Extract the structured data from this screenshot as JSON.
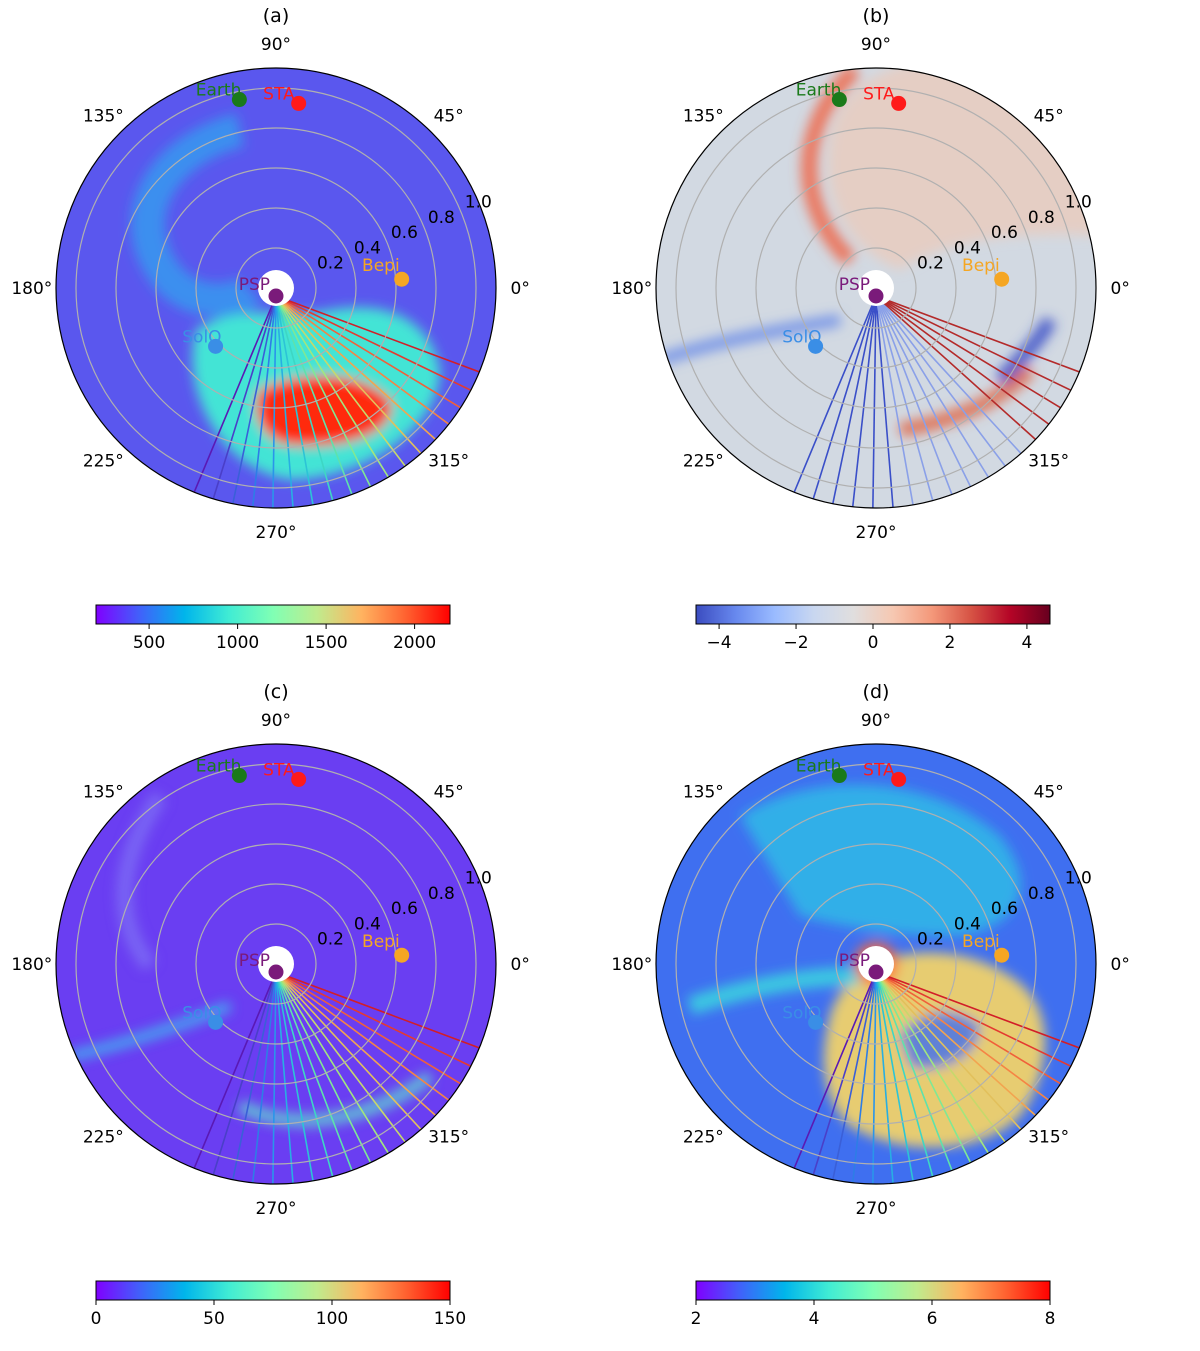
{
  "chart_data": [
    {
      "panel": "(a)",
      "type": "polar-heatmap",
      "title": "(a)",
      "background": "#5a57ee",
      "theta_ticks": [
        "0°",
        "45°",
        "90°",
        "135°",
        "180°",
        "225°",
        "270°",
        "315°"
      ],
      "r_ticks": [
        "0.2",
        "0.4",
        "0.6",
        "0.8",
        "1.0"
      ],
      "r_tick_values": [
        0.2,
        0.4,
        0.6,
        0.8,
        1.0
      ],
      "rmax": 1.1,
      "spacecraft": [
        {
          "name": "Earth",
          "theta": 101,
          "r": 0.96,
          "color": "#1a7a1a"
        },
        {
          "name": "STA",
          "theta": 83,
          "r": 0.93,
          "color": "#ff1a1a"
        },
        {
          "name": "Bepi",
          "theta": 4,
          "r": 0.63,
          "color": "#f5a623"
        },
        {
          "name": "SolO",
          "theta": 224,
          "r": 0.42,
          "color": "#3a8ee6"
        },
        {
          "name": "PSP",
          "theta": 270,
          "r": 0.04,
          "color": "#7a1a7a"
        }
      ],
      "colorbar": {
        "ticks": [
          "500",
          "1000",
          "1500",
          "2000"
        ],
        "tick_values": [
          500,
          1000,
          1500,
          2000
        ],
        "min": 200,
        "max": 2200,
        "cmap": "rainbow"
      }
    },
    {
      "panel": "(b)",
      "type": "polar-heatmap",
      "title": "(b)",
      "background": "#d2d9e2",
      "theta_ticks": [
        "0°",
        "45°",
        "90°",
        "135°",
        "180°",
        "225°",
        "270°",
        "315°"
      ],
      "r_ticks": [
        "0.2",
        "0.4",
        "0.6",
        "0.8",
        "1.0"
      ],
      "r_tick_values": [
        0.2,
        0.4,
        0.6,
        0.8,
        1.0
      ],
      "rmax": 1.1,
      "spacecraft": [
        {
          "name": "Earth",
          "theta": 101,
          "r": 0.96,
          "color": "#1a7a1a"
        },
        {
          "name": "STA",
          "theta": 83,
          "r": 0.93,
          "color": "#ff1a1a"
        },
        {
          "name": "Bepi",
          "theta": 4,
          "r": 0.63,
          "color": "#f5a623"
        },
        {
          "name": "SolO",
          "theta": 224,
          "r": 0.42,
          "color": "#3a8ee6"
        },
        {
          "name": "PSP",
          "theta": 270,
          "r": 0.04,
          "color": "#7a1a7a"
        }
      ],
      "colorbar": {
        "ticks": [
          "−4",
          "−2",
          "0",
          "2",
          "4"
        ],
        "tick_values": [
          -4,
          -2,
          0,
          2,
          4
        ],
        "min": -4.6,
        "max": 4.6,
        "cmap": "coolwarm"
      }
    },
    {
      "panel": "(c)",
      "type": "polar-heatmap",
      "title": "(c)",
      "background": "#6a3ef2",
      "theta_ticks": [
        "0°",
        "45°",
        "90°",
        "135°",
        "180°",
        "225°",
        "270°",
        "315°"
      ],
      "r_ticks": [
        "0.2",
        "0.4",
        "0.6",
        "0.8",
        "1.0"
      ],
      "r_tick_values": [
        0.2,
        0.4,
        0.6,
        0.8,
        1.0
      ],
      "rmax": 1.1,
      "spacecraft": [
        {
          "name": "Earth",
          "theta": 101,
          "r": 0.96,
          "color": "#1a7a1a"
        },
        {
          "name": "STA",
          "theta": 83,
          "r": 0.93,
          "color": "#ff1a1a"
        },
        {
          "name": "Bepi",
          "theta": 4,
          "r": 0.63,
          "color": "#f5a623"
        },
        {
          "name": "SolO",
          "theta": 224,
          "r": 0.42,
          "color": "#3a8ee6"
        },
        {
          "name": "PSP",
          "theta": 270,
          "r": 0.04,
          "color": "#7a1a7a"
        }
      ],
      "colorbar": {
        "ticks": [
          "0",
          "50",
          "100",
          "150"
        ],
        "tick_values": [
          0,
          50,
          100,
          150
        ],
        "min": 0,
        "max": 150,
        "cmap": "rainbow"
      }
    },
    {
      "panel": "(d)",
      "type": "polar-heatmap",
      "title": "(d)",
      "background": "#3f6ff0",
      "theta_ticks": [
        "0°",
        "45°",
        "90°",
        "135°",
        "180°",
        "225°",
        "270°",
        "315°"
      ],
      "r_ticks": [
        "0.2",
        "0.4",
        "0.6",
        "0.8",
        "1.0"
      ],
      "r_tick_values": [
        0.2,
        0.4,
        0.6,
        0.8,
        1.0
      ],
      "rmax": 1.1,
      "spacecraft": [
        {
          "name": "Earth",
          "theta": 101,
          "r": 0.96,
          "color": "#1a7a1a"
        },
        {
          "name": "STA",
          "theta": 83,
          "r": 0.93,
          "color": "#ff1a1a"
        },
        {
          "name": "Bepi",
          "theta": 4,
          "r": 0.63,
          "color": "#f5a623"
        },
        {
          "name": "SolO",
          "theta": 224,
          "r": 0.42,
          "color": "#3a8ee6"
        },
        {
          "name": "PSP",
          "theta": 270,
          "r": 0.04,
          "color": "#7a1a7a"
        }
      ],
      "colorbar": {
        "ticks": [
          "2",
          "4",
          "6",
          "8"
        ],
        "tick_values": [
          2,
          4,
          6,
          8
        ],
        "min": 2,
        "max": 8,
        "cmap": "rainbow"
      }
    }
  ]
}
